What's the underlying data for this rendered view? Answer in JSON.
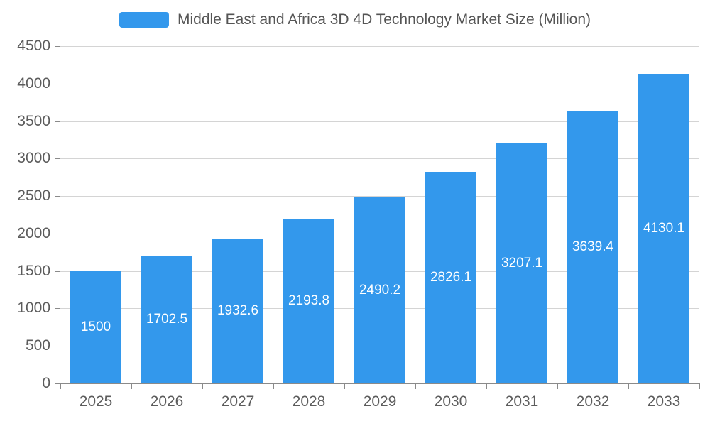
{
  "chart_data": {
    "type": "bar",
    "title": "Middle East and Africa 3D 4D Technology Market Size (Million)",
    "categories": [
      "2025",
      "2026",
      "2027",
      "2028",
      "2029",
      "2030",
      "2031",
      "2032",
      "2033"
    ],
    "values": [
      1500,
      1702.5,
      1932.6,
      2193.8,
      2490.2,
      2826.1,
      3207.1,
      3639.4,
      4130.1
    ],
    "value_labels": [
      "1500",
      "1702.5",
      "1932.6",
      "2193.8",
      "2490.2",
      "2826.1",
      "3207.1",
      "3639.4",
      "4130.1"
    ],
    "xlabel": "",
    "ylabel": "",
    "ylim": [
      0,
      4500
    ],
    "yticks": [
      0,
      500,
      1000,
      1500,
      2000,
      2500,
      3000,
      3500,
      4000,
      4500
    ],
    "grid": true,
    "legend_position": "top",
    "colors": {
      "bar": "#3398ec",
      "grid": "#d4d4d4",
      "axis": "#8a8a8a",
      "value_text": "#ffffff",
      "axis_text": "#5c5c5c",
      "title_text": "#555555"
    }
  }
}
